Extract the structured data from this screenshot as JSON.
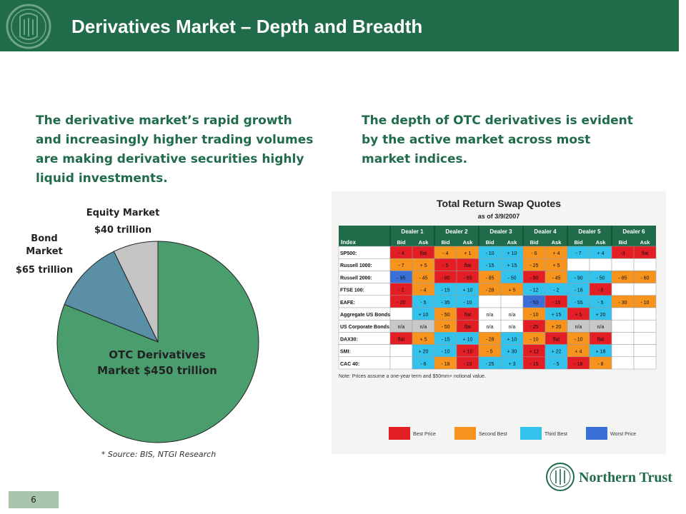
{
  "header": {
    "title": "Derivatives Market – Depth and Breadth"
  },
  "left_text": "The derivative market’s rapid growth and increasingly higher trading volumes are making derivative securities highly liquid investments.",
  "right_text": "The depth of OTC derivatives is evident by the active market across most market indices.",
  "chart_data": {
    "type": "pie",
    "slices": [
      {
        "name": "OTC Derivatives Market $450 trillion",
        "value": 450,
        "color": "#4a9e6e"
      },
      {
        "name": "Bond Market",
        "value_label": "$65 trillion",
        "value": 65,
        "color": "#5a8fa6"
      },
      {
        "name": "Equity Market",
        "value_label": "$40 trillion",
        "value": 40,
        "color": "#c4c4c4"
      }
    ],
    "otc_line1": "OTC Derivatives",
    "otc_line2": "Market $450 trillion",
    "bond_line1": "Bond",
    "bond_line2": "Market",
    "bond_value": "$65 trillion",
    "equity_line1": "Equity Market",
    "equity_value": "$40 trillion",
    "source": "* Source: BIS, NTGI Research"
  },
  "swap_table": {
    "title": "Total Return Swap Quotes",
    "subtitle": "as of 3/9/2007",
    "index_header": "Index",
    "dealers": [
      "Dealer 1",
      "Dealer 2",
      "Dealer 3",
      "Dealer 4",
      "Dealer 5",
      "Dealer 6"
    ],
    "bid_label": "Bid",
    "ask_label": "Ask",
    "rows": [
      {
        "name": "SP500:",
        "cells": [
          [
            "- 4",
            "R"
          ],
          [
            "flat",
            "R"
          ],
          [
            "- 4",
            "Y"
          ],
          [
            "+ 1",
            "Y"
          ],
          [
            "- 10",
            "C"
          ],
          [
            "+ 10",
            "C"
          ],
          [
            "- 6",
            "Y"
          ],
          [
            "+ 4",
            "Y"
          ],
          [
            "- 7",
            "C"
          ],
          [
            "+ 4",
            "C"
          ],
          [
            "-3",
            "R"
          ],
          [
            "flat",
            "R"
          ]
        ]
      },
      {
        "name": "Russell 1000:",
        "cells": [
          [
            "- 7",
            "Y"
          ],
          [
            "+ 5",
            "Y"
          ],
          [
            "- 5",
            "R"
          ],
          [
            "flat",
            "R"
          ],
          [
            "- 15",
            "C"
          ],
          [
            "+ 15",
            "C"
          ],
          [
            "- 25",
            "Y"
          ],
          [
            "+ 5",
            "Y"
          ],
          [
            "",
            "W"
          ],
          [
            "",
            "W"
          ],
          [
            "",
            "W"
          ],
          [
            "",
            "W"
          ]
        ]
      },
      {
        "name": "Russell 2000:",
        "cells": [
          [
            "- 95",
            "B"
          ],
          [
            "- 45",
            "Y"
          ],
          [
            "- 80",
            "R"
          ],
          [
            "- 65",
            "R"
          ],
          [
            "- 85",
            "Y"
          ],
          [
            "- 50",
            "C"
          ],
          [
            "- 80",
            "R"
          ],
          [
            "- 45",
            "Y"
          ],
          [
            "- 90",
            "C"
          ],
          [
            "- 50",
            "C"
          ],
          [
            "- 85",
            "Y"
          ],
          [
            "- 60",
            "Y"
          ]
        ]
      },
      {
        "name": "FTSE 100:",
        "cells": [
          [
            "- 2",
            "R"
          ],
          [
            "- 4",
            "Y"
          ],
          [
            "- 15",
            "C"
          ],
          [
            "+ 10",
            "C"
          ],
          [
            "- 28",
            "Y"
          ],
          [
            "+ 5",
            "Y"
          ],
          [
            "- 12",
            "C"
          ],
          [
            "- 2",
            "C"
          ],
          [
            "- 18",
            "C"
          ],
          [
            "- 8",
            "R"
          ],
          [
            "",
            "W"
          ],
          [
            "",
            "W"
          ]
        ]
      },
      {
        "name": "EAFE:",
        "cells": [
          [
            "- 20",
            "R"
          ],
          [
            "- 5",
            "C"
          ],
          [
            "- 35",
            "C"
          ],
          [
            "- 10",
            "C"
          ],
          [
            "",
            "W"
          ],
          [
            "",
            "W"
          ],
          [
            "- 50",
            "B"
          ],
          [
            "- 15",
            "R"
          ],
          [
            "- 55",
            "C"
          ],
          [
            "- 5",
            "C"
          ],
          [
            "- 30",
            "Y"
          ],
          [
            "- 10",
            "Y"
          ]
        ]
      },
      {
        "name": "Aggregate US Bonds:",
        "cells": [
          [
            "",
            "W"
          ],
          [
            "+ 10",
            "C"
          ],
          [
            "- 50",
            "Y"
          ],
          [
            "flat",
            "R"
          ],
          [
            "n/a",
            "W"
          ],
          [
            "n/a",
            "W"
          ],
          [
            "- 10",
            "Y"
          ],
          [
            "+ 15",
            "C"
          ],
          [
            "+ 5",
            "R"
          ],
          [
            "+ 20",
            "C"
          ],
          [
            "",
            "W"
          ],
          [
            "",
            "W"
          ]
        ]
      },
      {
        "name": "US Corporate Bonds:",
        "cells": [
          [
            "n/a",
            "G"
          ],
          [
            "n/a",
            "G"
          ],
          [
            "- 50",
            "Y"
          ],
          [
            "flat",
            "R"
          ],
          [
            "n/a",
            "W"
          ],
          [
            "n/a",
            "W"
          ],
          [
            "- 25",
            "R"
          ],
          [
            "+ 20",
            "Y"
          ],
          [
            "n/a",
            "G"
          ],
          [
            "n/a",
            "G"
          ],
          [
            "",
            "W"
          ],
          [
            "",
            "W"
          ]
        ]
      },
      {
        "name": "DAX30:",
        "cells": [
          [
            "flat",
            "R"
          ],
          [
            "+ 5",
            "Y"
          ],
          [
            "- 15",
            "C"
          ],
          [
            "+ 10",
            "C"
          ],
          [
            "- 28",
            "Y"
          ],
          [
            "+ 10",
            "C"
          ],
          [
            "- 10",
            "Y"
          ],
          [
            "flat",
            "R"
          ],
          [
            "- 10",
            "Y"
          ],
          [
            "flat",
            "R"
          ],
          [
            "",
            "W"
          ],
          [
            "",
            "W"
          ]
        ]
      },
      {
        "name": "SMI:",
        "cells": [
          [
            "",
            "W"
          ],
          [
            "+ 20",
            "C"
          ],
          [
            "- 10",
            "C"
          ],
          [
            "+ 10",
            "R"
          ],
          [
            "- 5",
            "Y"
          ],
          [
            "+ 30",
            "C"
          ],
          [
            "+ 12",
            "R"
          ],
          [
            "+ 22",
            "C"
          ],
          [
            "+ 4",
            "Y"
          ],
          [
            "+ 18",
            "C"
          ],
          [
            "",
            "W"
          ],
          [
            "",
            "W"
          ]
        ]
      },
      {
        "name": "CAC 40:",
        "cells": [
          [
            "",
            "W"
          ],
          [
            "- 6",
            "C"
          ],
          [
            "- 18",
            "Y"
          ],
          [
            "- 10",
            "R"
          ],
          [
            "- 25",
            "C"
          ],
          [
            "+ 3",
            "C"
          ],
          [
            "- 15",
            "R"
          ],
          [
            "- 5",
            "C"
          ],
          [
            "- 18",
            "R"
          ],
          [
            "- 8",
            "Y"
          ],
          [
            "",
            "W"
          ],
          [
            "",
            "W"
          ]
        ]
      }
    ],
    "note": "Note: Prices assume a one-year term and $50mm+ notional value.",
    "legend": [
      {
        "label": "Best Price",
        "color": "#e31e24"
      },
      {
        "label": "Second Best",
        "color": "#f7941d"
      },
      {
        "label": "Third Best",
        "color": "#33c2ec"
      },
      {
        "label": "Worst Price",
        "color": "#3a6fd8"
      }
    ],
    "colors": {
      "R": "#e31e24",
      "Y": "#f7941d",
      "C": "#33c2ec",
      "B": "#3a6fd8",
      "G": "#c8c8c8",
      "W": "#ffffff"
    },
    "header_color": "#1f6b4a"
  },
  "footer": {
    "brand": "Northern Trust",
    "page_number": "6"
  }
}
